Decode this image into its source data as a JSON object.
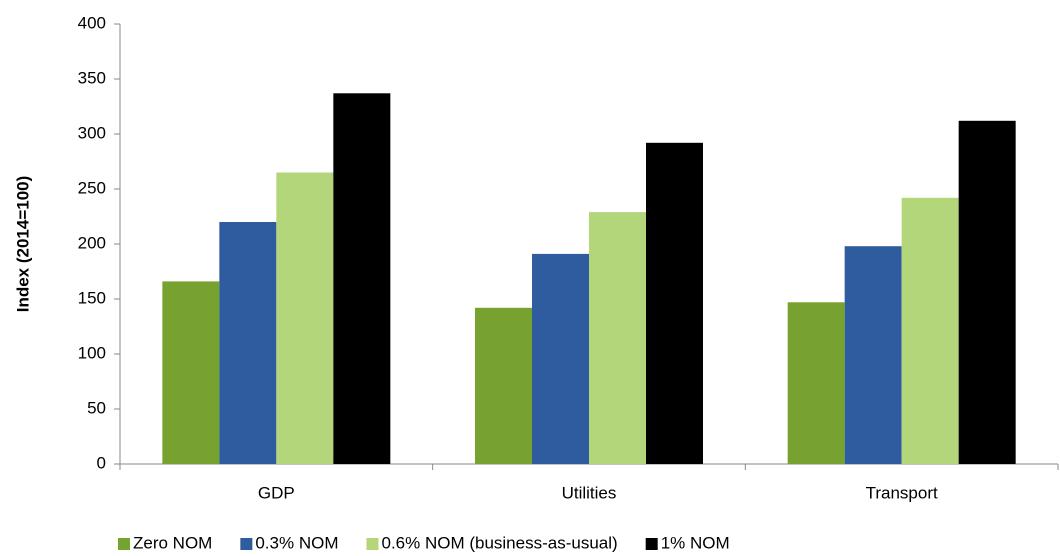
{
  "chart_data": {
    "type": "bar",
    "y_label": "Index  (2014=100)",
    "categories": [
      "GDP",
      "Utilities",
      "Transport"
    ],
    "series": [
      {
        "name": "Zero NOM",
        "color": "#77a22f",
        "values": [
          166,
          142,
          147
        ]
      },
      {
        "name": "0.3% NOM",
        "color": "#2e5c9e",
        "values": [
          220,
          191,
          198
        ]
      },
      {
        "name": "0.6% NOM (business-as-usual)",
        "color": "#b3d67a",
        "values": [
          265,
          229,
          242
        ]
      },
      {
        "name": "1% NOM",
        "color": "#000000",
        "values": [
          337,
          292,
          312
        ]
      }
    ],
    "ylim": [
      0,
      400
    ],
    "yticks": [
      0,
      50,
      100,
      150,
      200,
      250,
      300,
      350,
      400
    ],
    "grid": false,
    "legend": "bottom"
  }
}
